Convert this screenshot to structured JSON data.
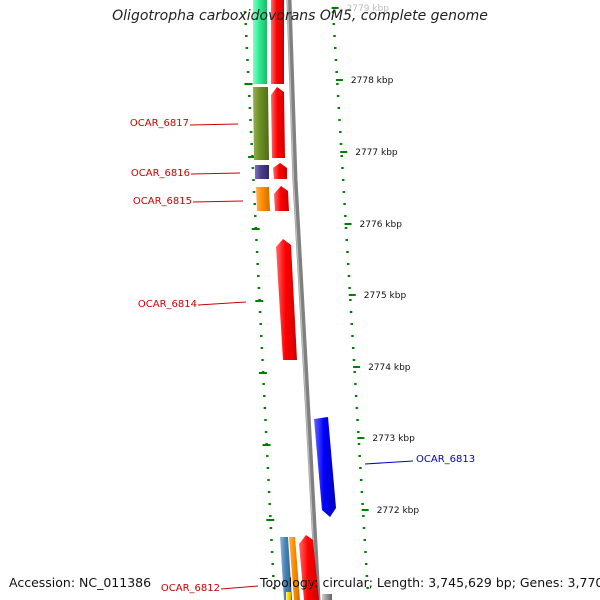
{
  "title": "Oligotropha carboxidovorans OM5, complete genome",
  "accession": "Accession: NC_011386",
  "topology": "Topology: circular; Length: 3,745,629 bp; Genes: 3,770",
  "kbp_labels": [
    "2779 kbp",
    "2778 kbp",
    "2777 kbp",
    "2776 kbp",
    "2775 kbp",
    "2774 kbp",
    "2773 kbp",
    "2772 kbp"
  ],
  "genes": [
    {
      "id": "OCAR_6817",
      "strand": "reverse",
      "color": "#6b8e23"
    },
    {
      "id": "OCAR_6816",
      "strand": "reverse",
      "color": "#483d8b"
    },
    {
      "id": "OCAR_6815",
      "strand": "reverse",
      "color": "#ff8c00"
    },
    {
      "id": "OCAR_6814",
      "strand": "reverse",
      "color": "#ff0000"
    },
    {
      "id": "OCAR_6813",
      "strand": "forward",
      "color": "#0000ff"
    },
    {
      "id": "OCAR_6812",
      "strand": "reverse",
      "color": "#ff8c00"
    }
  ],
  "colors": {
    "reverse_label": "#cc0000",
    "forward_label": "#0000cc",
    "tick": "#008000",
    "backbone": "#808080",
    "feature_red": "#ff0000",
    "feature_green": "#2eeb8f"
  }
}
